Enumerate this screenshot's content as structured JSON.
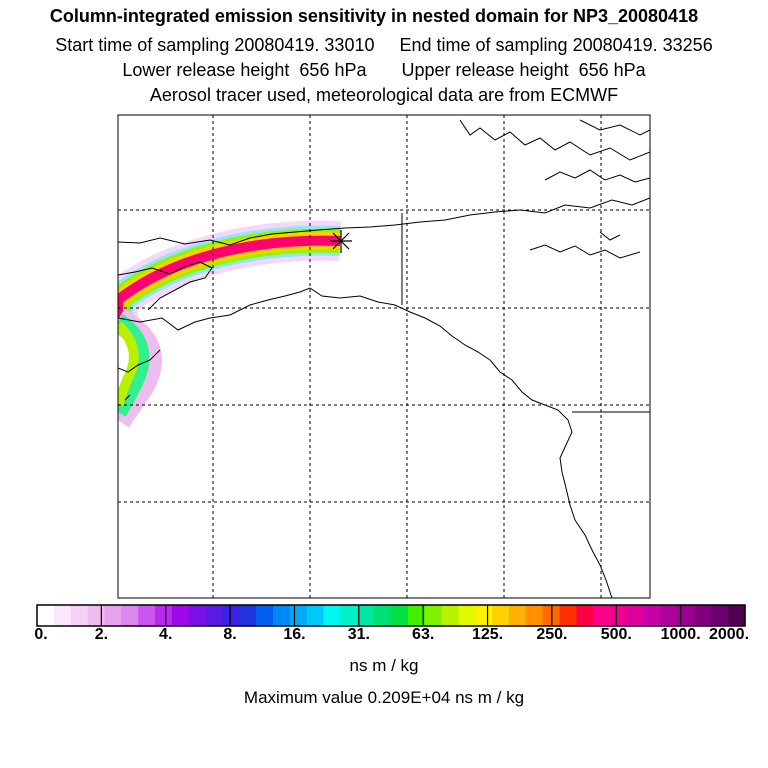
{
  "header": {
    "title": "Column-integrated emission sensitivity in nested domain for NP3_20080418",
    "sampling_line": "Start time of sampling 20080419. 33010     End time of sampling 20080419. 33256",
    "release_line": "Lower release height  656 hPa       Upper release height  656 hPa",
    "tracer_line": "Aerosol tracer used, meteorological data are from ECMWF"
  },
  "colorbar": {
    "tick_labels": [
      "0.",
      "2.",
      "4.",
      "8.",
      "16.",
      "31.",
      "63.",
      "125.",
      "250.",
      "500.",
      "1000.",
      "2000."
    ],
    "colors": [
      "#ffffff",
      "#fbe8fb",
      "#f5d2f5",
      "#efbcef",
      "#e6a2ef",
      "#dd88ef",
      "#cc55ee",
      "#b82aee",
      "#9f08ea",
      "#7b10e8",
      "#5a1ae6",
      "#3c24e4",
      "#2233e0",
      "#0060f0",
      "#0088f6",
      "#00aaf8",
      "#00c8fa",
      "#00f8f0",
      "#00f0c8",
      "#00e8a0",
      "#00e070",
      "#00e040",
      "#40f000",
      "#80f000",
      "#b8f000",
      "#e0f800",
      "#fff000",
      "#ffd000",
      "#ffb000",
      "#ff9000",
      "#ff6800",
      "#ff3000",
      "#ff0040",
      "#ff0088",
      "#f00090",
      "#e000a0",
      "#c800a8",
      "#b0009c",
      "#9a0090",
      "#800080",
      "#6a0070",
      "#500050"
    ],
    "units": "ns m / kg",
    "max_value": "Maximum value  0.209E+04 ns m / kg"
  },
  "map": {
    "release_point_marker": "asterisk"
  }
}
